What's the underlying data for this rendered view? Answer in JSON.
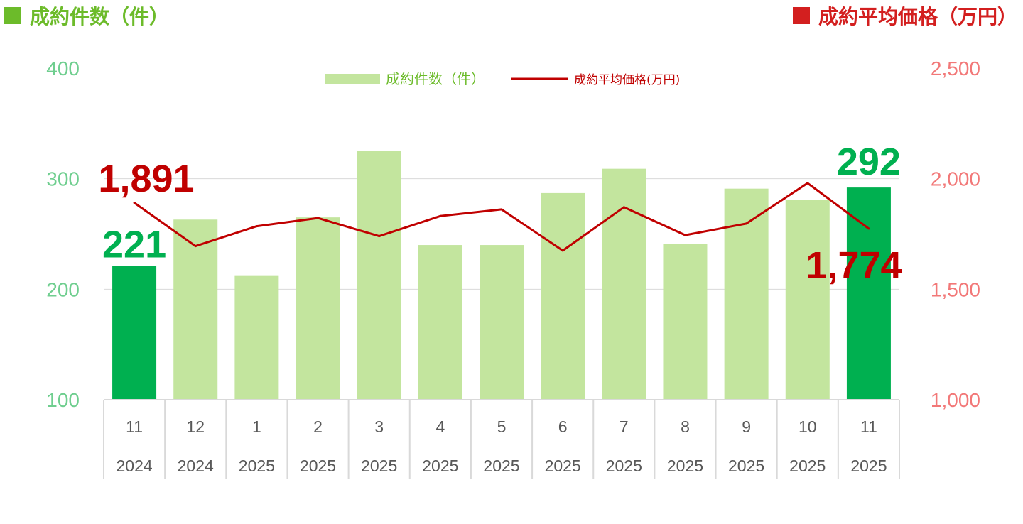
{
  "header": {
    "left_title": "成約件数（件）",
    "right_title": "成約平均価格（万円）"
  },
  "colors": {
    "left_title": "#6cbb2a",
    "right_title": "#d31f1f",
    "bar_light": "#c3e59e",
    "bar_highlight": "#00b050",
    "line": "#c00000",
    "left_axis_text": "#6fce8f",
    "right_axis_text": "#f27878",
    "grid": "#d9d9d9"
  },
  "chart_data": {
    "type": "bar",
    "categories": [
      "11",
      "12",
      "1",
      "2",
      "3",
      "4",
      "5",
      "6",
      "7",
      "8",
      "9",
      "10",
      "11"
    ],
    "years": [
      "2024",
      "2024",
      "2025",
      "2025",
      "2025",
      "2025",
      "2025",
      "2025",
      "2025",
      "2025",
      "2025",
      "2025",
      "2025"
    ],
    "series": [
      {
        "name": "成約件数（件）",
        "type": "bar",
        "axis": "left",
        "values": [
          221,
          263,
          212,
          265,
          325,
          240,
          240,
          287,
          309,
          241,
          291,
          281,
          292
        ],
        "highlight": [
          true,
          false,
          false,
          false,
          false,
          false,
          false,
          false,
          false,
          false,
          false,
          false,
          true
        ]
      },
      {
        "name": "成約平均価格(万円)",
        "type": "line",
        "axis": "right",
        "values": [
          1891,
          1695,
          1785,
          1822,
          1740,
          1831,
          1861,
          1675,
          1871,
          1745,
          1797,
          1980,
          1774
        ]
      }
    ],
    "left_axis": {
      "min": 100,
      "max": 400,
      "ticks": [
        "100",
        "200",
        "300",
        "400"
      ]
    },
    "right_axis": {
      "min": 1000,
      "max": 2500,
      "ticks": [
        "1,000",
        "1,500",
        "2,000",
        "2,500"
      ]
    },
    "grid": true,
    "legend_position": "top-center",
    "annotations": {
      "first_count": "221",
      "last_count": "292",
      "first_price": "1,891",
      "last_price": "1,774"
    }
  }
}
